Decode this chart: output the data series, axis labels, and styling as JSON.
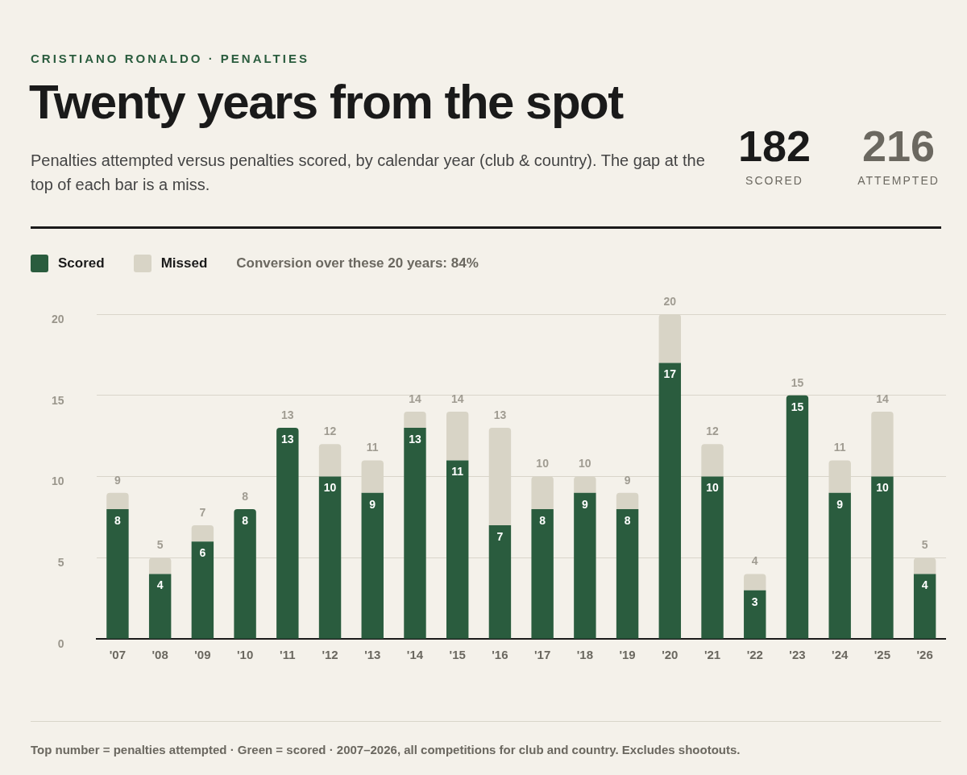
{
  "chart_data": {
    "type": "bar",
    "stacked": true,
    "title": "Twenty years from the spot",
    "subtitle": "Penalties attempted versus penalties scored, by calendar year (club & country). The gap at the top of each bar is a miss.",
    "annotations": [
      "CRISTIANO RONALDO · PENALTIES",
      "182",
      "SCORED",
      "216",
      "ATTEMPTED",
      "Conversion over these 20 years: 84%",
      "Top number = penalties attempted · Green = scored · 2007–2026, all competitions for club and country. Excludes shootouts."
    ],
    "categories": [
      "'07",
      "'08",
      "'09",
      "'10",
      "'11",
      "'12",
      "'13",
      "'14",
      "'15",
      "'16",
      "'17",
      "'18",
      "'19",
      "'20",
      "'21",
      "'22",
      "'23",
      "'24",
      "'25",
      "'26"
    ],
    "series": [
      {
        "name": "Scored",
        "color": "#2a5c3e",
        "values": [
          8,
          4,
          6,
          8,
          13,
          10,
          9,
          13,
          11,
          7,
          8,
          9,
          8,
          17,
          10,
          3,
          15,
          9,
          10,
          4
        ],
        "value_labels": [
          "8",
          "4",
          "6",
          "8",
          "13",
          "10",
          "9",
          "13",
          "11",
          "7",
          "8",
          "9",
          "8",
          "17",
          "10",
          "3",
          "15",
          "9",
          "10",
          "4"
        ]
      },
      {
        "name": "Missed",
        "color": "#d8d4c6",
        "values": [
          1,
          1,
          1,
          0,
          0,
          2,
          2,
          1,
          3,
          6,
          2,
          1,
          1,
          3,
          2,
          1,
          0,
          2,
          4,
          1
        ]
      }
    ],
    "totals": [
      "9",
      "5",
      "7",
      "8",
      "13",
      "12",
      "11",
      "14",
      "14",
      "13",
      "10",
      "10",
      "9",
      "20",
      "12",
      "4",
      "15",
      "11",
      "14",
      "5"
    ],
    "ylim": [
      0,
      20
    ],
    "yticks": [
      0,
      5,
      10,
      15,
      20
    ],
    "grid": "y",
    "legend": "top left"
  }
}
